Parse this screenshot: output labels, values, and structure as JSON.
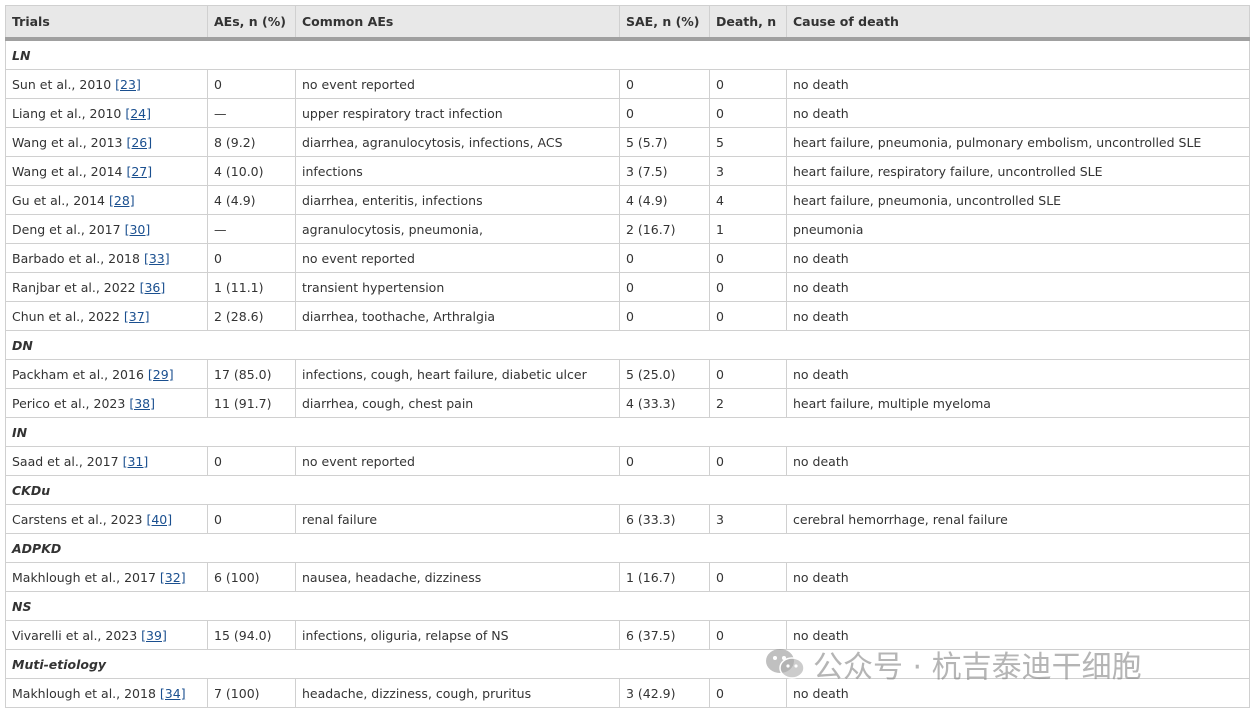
{
  "header": [
    "Trials",
    "AEs, n (%)",
    "Common AEs",
    "SAE, n (%)",
    "Death, n",
    "Cause of death"
  ],
  "groups": [
    {
      "name": "LN",
      "rows": [
        [
          "Sun et al., 2010",
          "[23]",
          "0",
          "no event reported",
          "0",
          "0",
          "no death"
        ],
        [
          "Liang et al., 2010",
          "[24]",
          "—",
          "upper respiratory tract infection",
          "0",
          "0",
          "no death"
        ],
        [
          "Wang et al., 2013",
          "[26]",
          "8 (9.2)",
          "diarrhea, agranulocytosis, infections, ACS",
          "5 (5.7)",
          "5",
          "heart failure, pneumonia, pulmonary embolism, uncontrolled SLE"
        ],
        [
          "Wang et al., 2014",
          "[27]",
          "4 (10.0)",
          "infections",
          "3 (7.5)",
          "3",
          "heart failure, respiratory failure, uncontrolled SLE"
        ],
        [
          "Gu et al., 2014",
          "[28]",
          "4 (4.9)",
          "diarrhea, enteritis, infections",
          "4 (4.9)",
          "4",
          "heart failure, pneumonia, uncontrolled SLE"
        ],
        [
          "Deng et al., 2017",
          "[30]",
          "—",
          "agranulocytosis, pneumonia,",
          "2 (16.7)",
          "1",
          "pneumonia"
        ],
        [
          "Barbado et al., 2018",
          "[33]",
          "0",
          "no event reported",
          "0",
          "0",
          "no death"
        ],
        [
          "Ranjbar et al., 2022",
          "[36]",
          "1 (11.1)",
          "transient hypertension",
          "0",
          "0",
          "no death"
        ],
        [
          "Chun et al., 2022",
          "[37]",
          "2 (28.6)",
          "diarrhea, toothache, Arthralgia",
          "0",
          "0",
          "no death"
        ]
      ]
    },
    {
      "name": "DN",
      "rows": [
        [
          "Packham et al., 2016",
          "[29]",
          "17 (85.0)",
          "infections, cough, heart failure, diabetic ulcer",
          "5 (25.0)",
          "0",
          "no death"
        ],
        [
          "Perico et al., 2023",
          "[38]",
          "11 (91.7)",
          "diarrhea, cough, chest pain",
          "4 (33.3)",
          "2",
          "heart failure, multiple myeloma"
        ]
      ]
    },
    {
      "name": "IN",
      "rows": [
        [
          "Saad et al., 2017",
          "[31]",
          "0",
          "no event reported",
          "0",
          "0",
          "no death"
        ]
      ]
    },
    {
      "name": "CKDu",
      "rows": [
        [
          "Carstens et al., 2023",
          "[40]",
          "0",
          "renal failure",
          "6 (33.3)",
          "3",
          "cerebral hemorrhage, renal failure"
        ]
      ]
    },
    {
      "name": "ADPKD",
      "rows": [
        [
          "Makhlough et al., 2017",
          "[32]",
          "6 (100)",
          "nausea, headache, dizziness",
          "1 (16.7)",
          "0",
          "no death"
        ]
      ]
    },
    {
      "name": "NS",
      "rows": [
        [
          "Vivarelli et al., 2023",
          "[39]",
          "15 (94.0)",
          "infections, oliguria, relapse of NS",
          "6 (37.5)",
          "0",
          "no death"
        ]
      ]
    },
    {
      "name": "Muti-etiology",
      "rows": [
        [
          "Makhlough et al., 2018",
          "[34]",
          "7 (100)",
          "headache, dizziness, cough, pruritus",
          "3 (42.9)",
          "0",
          "no death"
        ]
      ]
    }
  ],
  "watermark": "公众号 · 杭吉泰迪干细胞"
}
